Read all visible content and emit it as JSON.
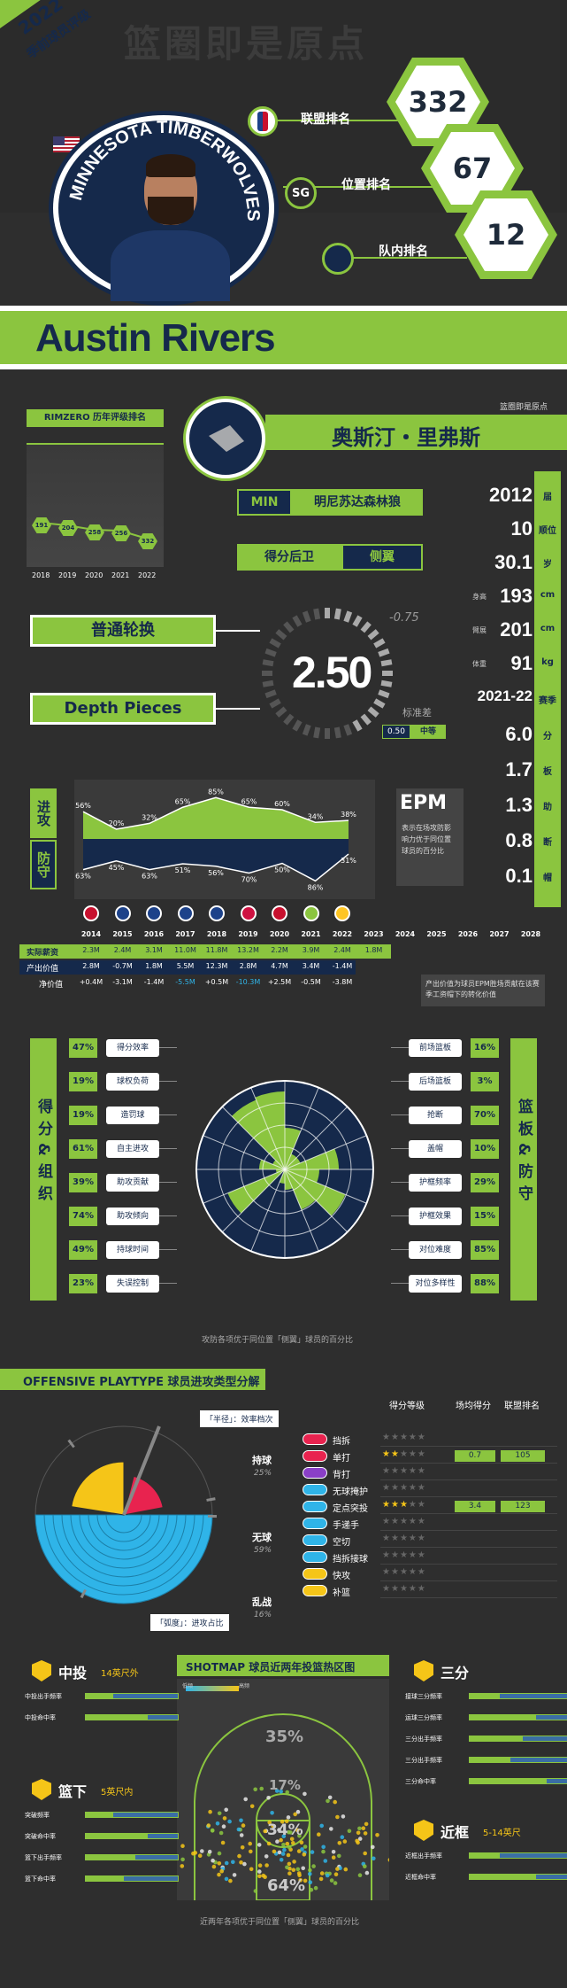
{
  "banner": {
    "year": "2022",
    "subtitle": "季前球员评级",
    "watermark": "篮圈即是原点"
  },
  "ranks": {
    "league_label": "联盟排名",
    "league_value": "332",
    "position_label": "位置排名",
    "position_value": "67",
    "position_badge": "SG",
    "team_label": "队内排名",
    "team_value": "12"
  },
  "player": {
    "name_en": "Austin Rivers",
    "name_cn": "奥斯汀・里弗斯",
    "team_abbr": "MIN",
    "team_cn": "明尼苏达森林狼",
    "position_cn": "得分后卫",
    "role_cn": "侧翼",
    "team_logo_text": "MINNESOTA TIMBERWOLVES"
  },
  "credit": "篮圈即是原点",
  "rating_history": {
    "title": "RIMZERO 历年评级排名",
    "years": [
      "2018",
      "2019",
      "2020",
      "2021",
      "2022"
    ],
    "values": [
      "191",
      "204",
      "258",
      "256",
      "332"
    ]
  },
  "tier": {
    "tier1": "普通轮换",
    "tier2": "Depth Pieces",
    "score": "2.50",
    "delta": "-0.75",
    "std_label": "标准差",
    "std_value": "0.50",
    "std_level": "中等"
  },
  "profile": [
    {
      "value": "2012",
      "unit": "届"
    },
    {
      "value": "10",
      "unit": "顺位"
    },
    {
      "value": "30.1",
      "unit": "岁"
    },
    {
      "prefix": "身高",
      "value": "193",
      "unit": "cm"
    },
    {
      "prefix": "臂展",
      "value": "201",
      "unit": "cm"
    },
    {
      "prefix": "体重",
      "value": "91",
      "unit": "kg"
    },
    {
      "value": "2021-22",
      "unit": "赛季"
    },
    {
      "value": "6.0",
      "unit": "分"
    },
    {
      "value": "1.7",
      "unit": "板"
    },
    {
      "value": "1.3",
      "unit": "助"
    },
    {
      "value": "0.8",
      "unit": "断"
    },
    {
      "value": "0.1",
      "unit": "帽"
    }
  ],
  "epm": {
    "offense_label": "进攻",
    "defense_label": "防守",
    "title": "EPM",
    "desc": "表示在场攻防影响力优于同位置球员的百分比",
    "off": [
      "56%",
      "20%",
      "32%",
      "65%",
      "85%",
      "65%",
      "60%",
      "34%",
      "38%"
    ],
    "def": [
      "63%",
      "45%",
      "63%",
      "51%",
      "56%",
      "70%",
      "50%",
      "86%",
      "31%"
    ]
  },
  "salary": {
    "years": [
      "2014",
      "2015",
      "2016",
      "2017",
      "2018",
      "2019",
      "2020",
      "2021",
      "2022",
      "2023",
      "2024",
      "2025",
      "2026",
      "2027",
      "2028"
    ],
    "row1_label": "实际薪资",
    "row1": [
      "2.3M",
      "2.4M",
      "3.1M",
      "11.0M",
      "11.8M",
      "13.2M",
      "2.2M",
      "3.9M",
      "2.4M",
      "1.8M"
    ],
    "row2_label": "产出价值",
    "row2": [
      "2.8M",
      "-0.7M",
      "1.8M",
      "5.5M",
      "12.3M",
      "2.8M",
      "4.7M",
      "3.4M",
      "-1.4M"
    ],
    "row3_label": "净价值",
    "row3": [
      "+0.4M",
      "-3.1M",
      "-1.4M",
      "-5.5M",
      "+0.5M",
      "-10.3M",
      "+2.5M",
      "-0.5M",
      "-3.8M"
    ],
    "note": "产出价值为球员EPM胜场贡献在该赛季工资帽下的转化价值"
  },
  "radar": {
    "left_title": "得分&组织",
    "right_title": "篮板&防守",
    "left": [
      {
        "v": "47%",
        "l": "得分效率"
      },
      {
        "v": "19%",
        "l": "球权负荷"
      },
      {
        "v": "19%",
        "l": "造罚球"
      },
      {
        "v": "61%",
        "l": "自主进攻"
      },
      {
        "v": "39%",
        "l": "助攻贡献"
      },
      {
        "v": "74%",
        "l": "助攻倾向"
      },
      {
        "v": "49%",
        "l": "持球时间"
      },
      {
        "v": "23%",
        "l": "失误控制"
      }
    ],
    "right": [
      {
        "v": "16%",
        "l": "前场篮板"
      },
      {
        "v": "3%",
        "l": "后场篮板"
      },
      {
        "v": "70%",
        "l": "抢断"
      },
      {
        "v": "10%",
        "l": "盖帽"
      },
      {
        "v": "29%",
        "l": "护框频率"
      },
      {
        "v": "15%",
        "l": "护框效果"
      },
      {
        "v": "85%",
        "l": "对位难度"
      },
      {
        "v": "88%",
        "l": "对位多样性"
      }
    ],
    "footnote": "攻防各项优于同位置「侧翼」球员的百分比"
  },
  "playtype": {
    "title": "OFFENSIVE PLAYTYPE 球员进攻类型分解",
    "half_label": "「半径」：效率档次",
    "arc_label": "「弧度」：进攻占比",
    "col_grade": "得分等级",
    "col_rate": "场均得分",
    "col_rank": "联盟排名",
    "groups": [
      {
        "name": "持球",
        "pct": "25%"
      },
      {
        "name": "无球",
        "pct": "59%"
      },
      {
        "name": "乱战",
        "pct": "16%"
      }
    ],
    "items": [
      {
        "l": "挡拆",
        "s": 0
      },
      {
        "l": "单打",
        "s": 2,
        "rate": "0.7",
        "rank": "105"
      },
      {
        "l": "背打",
        "s": 0
      },
      {
        "l": "无球掩护",
        "s": 0
      },
      {
        "l": "定点突投",
        "s": 3,
        "rate": "3.4",
        "rank": "123"
      },
      {
        "l": "手递手",
        "s": 0
      },
      {
        "l": "空切",
        "s": 0
      },
      {
        "l": "挡拆接球",
        "s": 0
      },
      {
        "l": "快攻",
        "s": 0
      },
      {
        "l": "补篮",
        "s": 0
      }
    ],
    "colors": [
      "#e8234f",
      "#e8234f",
      "#8a3fc7",
      "#2fb4e8",
      "#2fb4e8",
      "#2fb4e8",
      "#2fb4e8",
      "#2fb4e8",
      "#f5c518",
      "#f5c518"
    ]
  },
  "shotmap": {
    "title": "SHOTMAP 球员近两年投篮热区图",
    "legend_low": "低频",
    "legend_high": "高频",
    "mid_title": "中投",
    "mid_range": "14英尺外",
    "mid_rows": [
      "中投出手频率",
      "中投命中率"
    ],
    "paint_title": "篮下",
    "paint_range": "5英尺内",
    "paint_rows": [
      "突破频率",
      "突破命中率",
      "篮下出手频率",
      "篮下命中率"
    ],
    "three_title": "三分",
    "three_rows": [
      "接球三分频率",
      "运球三分频率",
      "三分出手频率",
      "三分出手频率",
      "三分命中率"
    ],
    "close_title": "近框",
    "close_range": "5-14英尺",
    "close_rows": [
      "近框出手频率",
      "近框命中率"
    ],
    "pct_three": "35%",
    "pct_mid": "17%",
    "pct_close": "34%",
    "pct_rim": "64%",
    "footnote": "近两年各项优于同位置「侧翼」球员的百分比"
  }
}
